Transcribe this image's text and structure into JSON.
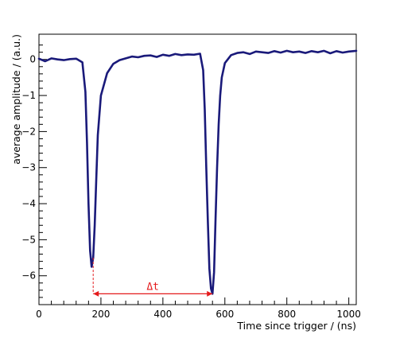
{
  "chart_data": {
    "type": "line",
    "title": "",
    "xlabel": "Time since trigger / (ns)",
    "ylabel": "average amplitude / (a.u.)",
    "xlim": [
      0,
      1024
    ],
    "ylim": [
      -6.8,
      0.7
    ],
    "x_ticks": [
      0,
      200,
      400,
      600,
      800,
      1000
    ],
    "y_ticks": [
      0,
      -1,
      -2,
      -3,
      -4,
      -5,
      -6
    ],
    "x_tick_labels": [
      "0",
      "200",
      "400",
      "600",
      "800",
      "1000"
    ],
    "y_tick_labels": [
      "0",
      "−1",
      "−2",
      "−3",
      "−4",
      "−5",
      "−6"
    ],
    "grid": false,
    "colors": {
      "series": "#1a1a7a",
      "annotation": "#e41a1c"
    },
    "series": [
      {
        "x": [
          0,
          20,
          40,
          60,
          80,
          100,
          120,
          140,
          150,
          155,
          160,
          165,
          170,
          175,
          180,
          185,
          190,
          200,
          220,
          240,
          260,
          280,
          300,
          320,
          340,
          360,
          380,
          400,
          420,
          440,
          460,
          480,
          500,
          520,
          530,
          535,
          540,
          545,
          550,
          555,
          560,
          565,
          570,
          575,
          580,
          585,
          590,
          600,
          620,
          640,
          660,
          680,
          700,
          720,
          740,
          760,
          780,
          800,
          820,
          840,
          860,
          880,
          900,
          920,
          940,
          960,
          980,
          1000,
          1024
        ],
        "values": [
          0.02,
          -0.05,
          0.03,
          0.0,
          -0.02,
          0.01,
          0.02,
          -0.08,
          -0.9,
          -2.3,
          -4.0,
          -5.3,
          -5.75,
          -5.5,
          -4.6,
          -3.3,
          -2.1,
          -1.0,
          -0.38,
          -0.12,
          -0.02,
          0.03,
          0.08,
          0.06,
          0.1,
          0.11,
          0.07,
          0.13,
          0.1,
          0.15,
          0.12,
          0.14,
          0.13,
          0.16,
          -0.3,
          -1.4,
          -3.0,
          -4.5,
          -5.8,
          -6.35,
          -6.5,
          -5.9,
          -4.4,
          -3.0,
          -1.8,
          -1.0,
          -0.5,
          -0.1,
          0.12,
          0.18,
          0.2,
          0.15,
          0.22,
          0.2,
          0.18,
          0.23,
          0.19,
          0.24,
          0.2,
          0.22,
          0.18,
          0.23,
          0.2,
          0.24,
          0.17,
          0.23,
          0.19,
          0.22,
          0.24
        ]
      }
    ],
    "annotations": [
      {
        "text": "Δt",
        "x_start": 175,
        "x_end": 560,
        "y": -6.5
      }
    ]
  }
}
